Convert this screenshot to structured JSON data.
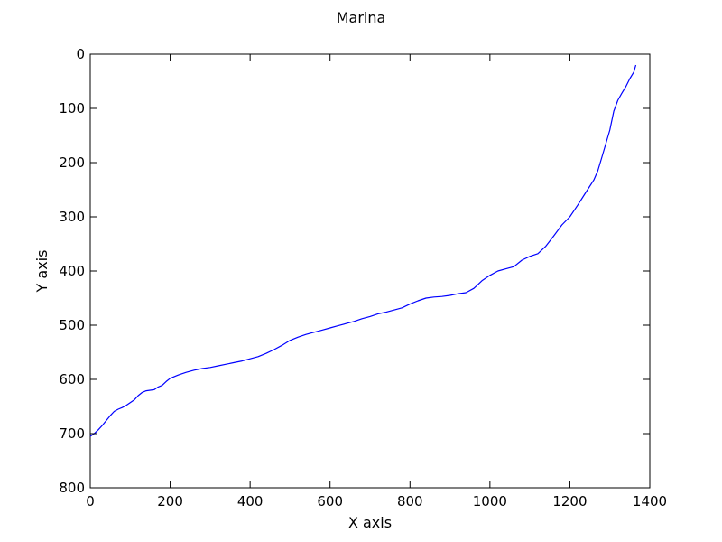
{
  "chart_data": {
    "type": "line",
    "title": "Marina",
    "xlabel": "X axis",
    "ylabel": "Y axis",
    "xlim": [
      0,
      1400
    ],
    "ylim": [
      800,
      0
    ],
    "y_inverted": true,
    "grid": false,
    "x_ticks": [
      "0",
      "200",
      "400",
      "600",
      "800",
      "1000",
      "1200",
      "1400"
    ],
    "y_ticks": [
      "0",
      "100",
      "200",
      "300",
      "400",
      "500",
      "600",
      "700",
      "800"
    ],
    "series": [
      {
        "color": "#0000ff",
        "x": [
          0,
          10,
          20,
          30,
          40,
          50,
          60,
          70,
          80,
          90,
          100,
          110,
          120,
          130,
          140,
          150,
          160,
          170,
          180,
          190,
          200,
          220,
          240,
          260,
          280,
          300,
          320,
          340,
          360,
          380,
          400,
          420,
          440,
          460,
          480,
          500,
          520,
          540,
          560,
          580,
          600,
          620,
          640,
          660,
          680,
          700,
          720,
          740,
          760,
          780,
          800,
          820,
          840,
          860,
          880,
          900,
          920,
          940,
          960,
          980,
          1000,
          1020,
          1040,
          1060,
          1080,
          1100,
          1120,
          1140,
          1160,
          1180,
          1200,
          1220,
          1240,
          1260,
          1270,
          1280,
          1290,
          1300,
          1310,
          1320,
          1330,
          1340,
          1350,
          1360,
          1365
        ],
        "y": [
          705,
          700,
          693,
          685,
          676,
          667,
          659,
          655,
          652,
          648,
          643,
          638,
          630,
          624,
          621,
          620,
          619,
          614,
          611,
          604,
          598,
          592,
          587,
          583,
          580,
          578,
          575,
          572,
          569,
          566,
          562,
          558,
          552,
          545,
          537,
          528,
          522,
          517,
          513,
          509,
          505,
          501,
          497,
          493,
          488,
          484,
          479,
          476,
          472,
          468,
          461,
          455,
          450,
          448,
          447,
          445,
          442,
          440,
          432,
          418,
          408,
          400,
          396,
          392,
          380,
          373,
          368,
          354,
          335,
          315,
          300,
          278,
          255,
          232,
          215,
          190,
          165,
          140,
          105,
          85,
          72,
          60,
          45,
          33,
          20
        ]
      }
    ]
  }
}
